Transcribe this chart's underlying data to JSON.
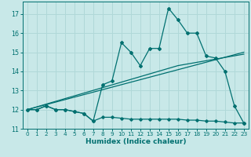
{
  "title": "",
  "xlabel": "Humidex (Indice chaleur)",
  "background_color": "#c8e8e8",
  "line_color": "#007070",
  "grid_color": "#b0d8d8",
  "xlim": [
    -0.5,
    23.5
  ],
  "ylim": [
    11.0,
    17.65
  ],
  "yticks": [
    11,
    12,
    13,
    14,
    15,
    16,
    17
  ],
  "xticks": [
    0,
    1,
    2,
    3,
    4,
    5,
    6,
    7,
    8,
    9,
    10,
    11,
    12,
    13,
    14,
    15,
    16,
    17,
    18,
    19,
    20,
    21,
    22,
    23
  ],
  "main_x": [
    0,
    1,
    2,
    3,
    4,
    5,
    6,
    7,
    8,
    9,
    10,
    11,
    12,
    13,
    14,
    15,
    16,
    17,
    18,
    19,
    20,
    21,
    22,
    23
  ],
  "main_y": [
    12.0,
    12.0,
    12.2,
    12.0,
    12.0,
    11.9,
    11.8,
    11.4,
    13.3,
    13.5,
    15.5,
    15.0,
    14.3,
    15.2,
    15.2,
    17.3,
    16.7,
    16.0,
    16.0,
    14.8,
    14.7,
    14.0,
    12.2,
    11.3
  ],
  "trend1_x": [
    0,
    23
  ],
  "trend1_y": [
    12.0,
    15.0
  ],
  "trend2_x": [
    0,
    16,
    23
  ],
  "trend2_y": [
    12.0,
    14.3,
    14.9
  ],
  "min_x": [
    0,
    1,
    2,
    3,
    4,
    5,
    6,
    7,
    8,
    9,
    10,
    11,
    12,
    13,
    14,
    15,
    16,
    17,
    18,
    19,
    20,
    21,
    22,
    23
  ],
  "min_y": [
    12.0,
    12.0,
    12.2,
    12.0,
    12.0,
    11.9,
    11.8,
    11.4,
    11.6,
    11.6,
    11.55,
    11.5,
    11.5,
    11.5,
    11.5,
    11.5,
    11.5,
    11.45,
    11.45,
    11.4,
    11.4,
    11.35,
    11.3,
    11.3
  ]
}
